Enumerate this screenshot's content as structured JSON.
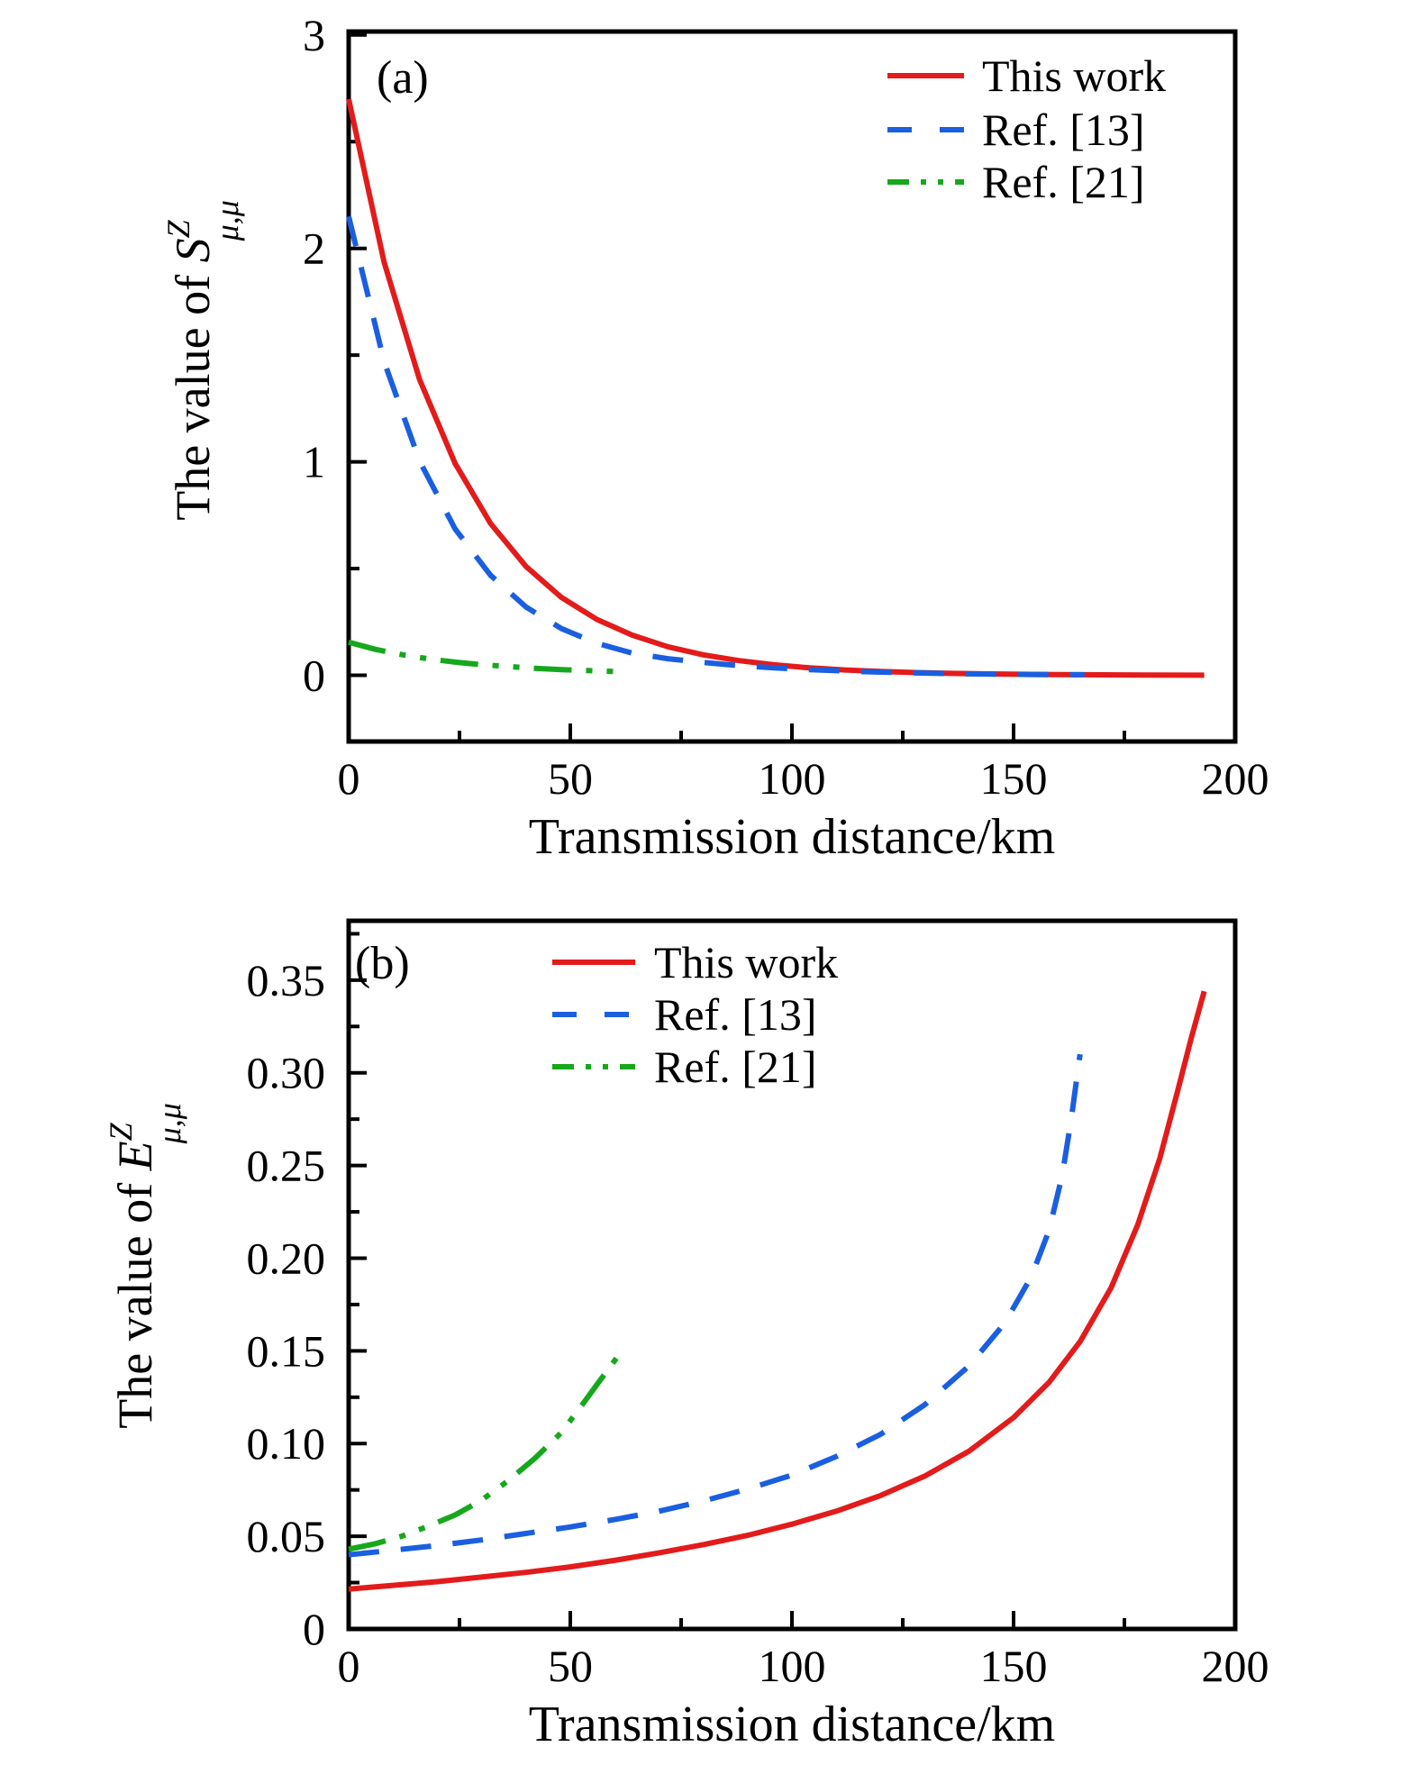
{
  "figure": {
    "background": "#ffffff",
    "axis_color": "#000000",
    "accent_colors": {
      "this_work": "#e31b1b",
      "ref13": "#1a5fe0",
      "ref21": "#16a81c"
    }
  },
  "chart_data": [
    {
      "type": "line",
      "panel_tag": "(a)",
      "xlabel": "Transmission distance/km",
      "ylabel": {
        "prefix": "The value of ",
        "symbol": "S",
        "sup": "Z",
        "sub": "μ,μ"
      },
      "xlim": [
        0,
        200
      ],
      "ylim": [
        -0.31,
        3.016
      ],
      "grid": false,
      "legend_position": "top-right",
      "x_ticks": {
        "major": [
          {
            "value": 0,
            "label": "0"
          },
          {
            "value": 50,
            "label": "50"
          },
          {
            "value": 100,
            "label": "100"
          },
          {
            "value": 150,
            "label": "150"
          },
          {
            "value": 200,
            "label": "200"
          }
        ],
        "minor": [
          25,
          75,
          125,
          175
        ]
      },
      "y_ticks": {
        "major": [
          {
            "value": 0,
            "label": "0"
          },
          {
            "value": 1,
            "label": "1"
          },
          {
            "value": 2,
            "label": "2"
          },
          {
            "value": 3,
            "label": "3"
          }
        ],
        "minor": [
          0.5,
          1.5,
          2.5
        ]
      },
      "series": [
        {
          "name": "This work",
          "color": "#e31b1b",
          "style": "solid",
          "points": [
            [
              0,
              2.7
            ],
            [
              8,
              1.934
            ],
            [
              16,
              1.386
            ],
            [
              24,
              0.993
            ],
            [
              32,
              0.712
            ],
            [
              40,
              0.51
            ],
            [
              48,
              0.365
            ],
            [
              56,
              0.262
            ],
            [
              64,
              0.188
            ],
            [
              72,
              0.134
            ],
            [
              80,
              0.096
            ],
            [
              88,
              0.069
            ],
            [
              96,
              0.049
            ],
            [
              104,
              0.035
            ],
            [
              112,
              0.025
            ],
            [
              120,
              0.018
            ],
            [
              128,
              0.013
            ],
            [
              136,
              0.009
            ],
            [
              144,
              0.0067
            ],
            [
              152,
              0.0048
            ],
            [
              160,
              0.0034
            ],
            [
              170,
              0.0022
            ],
            [
              180,
              0.0014
            ],
            [
              193,
              0.0008
            ]
          ]
        },
        {
          "name": "Ref. [13]",
          "color": "#1a5fe0",
          "style": "dashed",
          "points": [
            [
              0,
              2.15
            ],
            [
              8,
              1.469
            ],
            [
              16,
              1.004
            ],
            [
              24,
              0.686
            ],
            [
              32,
              0.469
            ],
            [
              40,
              0.32
            ],
            [
              48,
              0.219
            ],
            [
              56,
              0.15
            ],
            [
              64,
              0.104
            ],
            [
              72,
              0.078
            ],
            [
              80,
              0.06
            ],
            [
              88,
              0.046
            ],
            [
              96,
              0.035
            ],
            [
              104,
              0.027
            ],
            [
              112,
              0.02
            ],
            [
              120,
              0.015
            ],
            [
              128,
              0.011
            ],
            [
              136,
              0.008
            ],
            [
              144,
              0.006
            ],
            [
              152,
              0.0045
            ],
            [
              160,
              0.0033
            ],
            [
              166,
              0.0028
            ]
          ]
        },
        {
          "name": "Ref. [21]",
          "color": "#16a81c",
          "style": "dashdotdot",
          "points": [
            [
              0,
              0.155
            ],
            [
              6,
              0.122
            ],
            [
              12,
              0.097
            ],
            [
              18,
              0.077
            ],
            [
              24,
              0.062
            ],
            [
              30,
              0.05
            ],
            [
              36,
              0.041
            ],
            [
              42,
              0.033
            ],
            [
              48,
              0.027
            ],
            [
              54,
              0.022
            ],
            [
              61,
              0.017
            ]
          ]
        }
      ]
    },
    {
      "type": "line",
      "panel_tag": "(b)",
      "xlabel": "Transmission distance/km",
      "ylabel": {
        "prefix": "The value of ",
        "symbol": "E",
        "sup": "Z",
        "sub": "μ,μ"
      },
      "xlim": [
        0,
        200
      ],
      "ylim": [
        0,
        0.382
      ],
      "grid": false,
      "legend_position": "top-left",
      "x_ticks": {
        "major": [
          {
            "value": 0,
            "label": "0"
          },
          {
            "value": 50,
            "label": "50"
          },
          {
            "value": 100,
            "label": "100"
          },
          {
            "value": 150,
            "label": "150"
          },
          {
            "value": 200,
            "label": "200"
          }
        ],
        "minor": [
          25,
          75,
          125,
          175
        ]
      },
      "y_ticks": {
        "major": [
          {
            "value": 0,
            "label": "0"
          },
          {
            "value": 0.05,
            "label": "0.05"
          },
          {
            "value": 0.1,
            "label": "0.10"
          },
          {
            "value": 0.15,
            "label": "0.15"
          },
          {
            "value": 0.2,
            "label": "0.20"
          },
          {
            "value": 0.25,
            "label": "0.25"
          },
          {
            "value": 0.3,
            "label": "0.30"
          },
          {
            "value": 0.35,
            "label": "0.35"
          }
        ],
        "minor": [
          0.025,
          0.075,
          0.125,
          0.175,
          0.225,
          0.275,
          0.325,
          0.375
        ]
      },
      "series": [
        {
          "name": "This work",
          "color": "#e31b1b",
          "style": "solid",
          "points": [
            [
              0,
              0.0215
            ],
            [
              10,
              0.0235
            ],
            [
              20,
              0.0255
            ],
            [
              30,
              0.028
            ],
            [
              40,
              0.0305
            ],
            [
              50,
              0.0335
            ],
            [
              60,
              0.037
            ],
            [
              70,
              0.041
            ],
            [
              80,
              0.0455
            ],
            [
              90,
              0.0505
            ],
            [
              100,
              0.0565
            ],
            [
              110,
              0.0635
            ],
            [
              120,
              0.072
            ],
            [
              130,
              0.0825
            ],
            [
              140,
              0.096
            ],
            [
              150,
              0.114
            ],
            [
              158,
              0.133
            ],
            [
              165,
              0.155
            ],
            [
              172,
              0.184
            ],
            [
              178,
              0.218
            ],
            [
              183,
              0.254
            ],
            [
              187,
              0.29
            ],
            [
              190,
              0.318
            ],
            [
              193,
              0.344
            ]
          ]
        },
        {
          "name": "Ref. [13]",
          "color": "#1a5fe0",
          "style": "dashed",
          "points": [
            [
              0,
              0.04
            ],
            [
              10,
              0.0425
            ],
            [
              20,
              0.045
            ],
            [
              30,
              0.048
            ],
            [
              40,
              0.0515
            ],
            [
              50,
              0.055
            ],
            [
              60,
              0.059
            ],
            [
              70,
              0.0635
            ],
            [
              80,
              0.069
            ],
            [
              90,
              0.0755
            ],
            [
              100,
              0.083
            ],
            [
              110,
              0.093
            ],
            [
              120,
              0.105
            ],
            [
              130,
              0.121
            ],
            [
              140,
              0.142
            ],
            [
              148,
              0.165
            ],
            [
              154,
              0.19
            ],
            [
              158,
              0.215
            ],
            [
              161,
              0.245
            ],
            [
              163,
              0.275
            ],
            [
              165,
              0.31
            ]
          ]
        },
        {
          "name": "Ref. [21]",
          "color": "#16a81c",
          "style": "dashdotdot",
          "points": [
            [
              0,
              0.043
            ],
            [
              6,
              0.046
            ],
            [
              12,
              0.05
            ],
            [
              18,
              0.0555
            ],
            [
              24,
              0.0615
            ],
            [
              30,
              0.0695
            ],
            [
              36,
              0.08
            ],
            [
              42,
              0.092
            ],
            [
              48,
              0.106
            ],
            [
              53,
              0.122
            ],
            [
              57,
              0.135
            ],
            [
              61,
              0.148
            ]
          ]
        }
      ]
    }
  ]
}
